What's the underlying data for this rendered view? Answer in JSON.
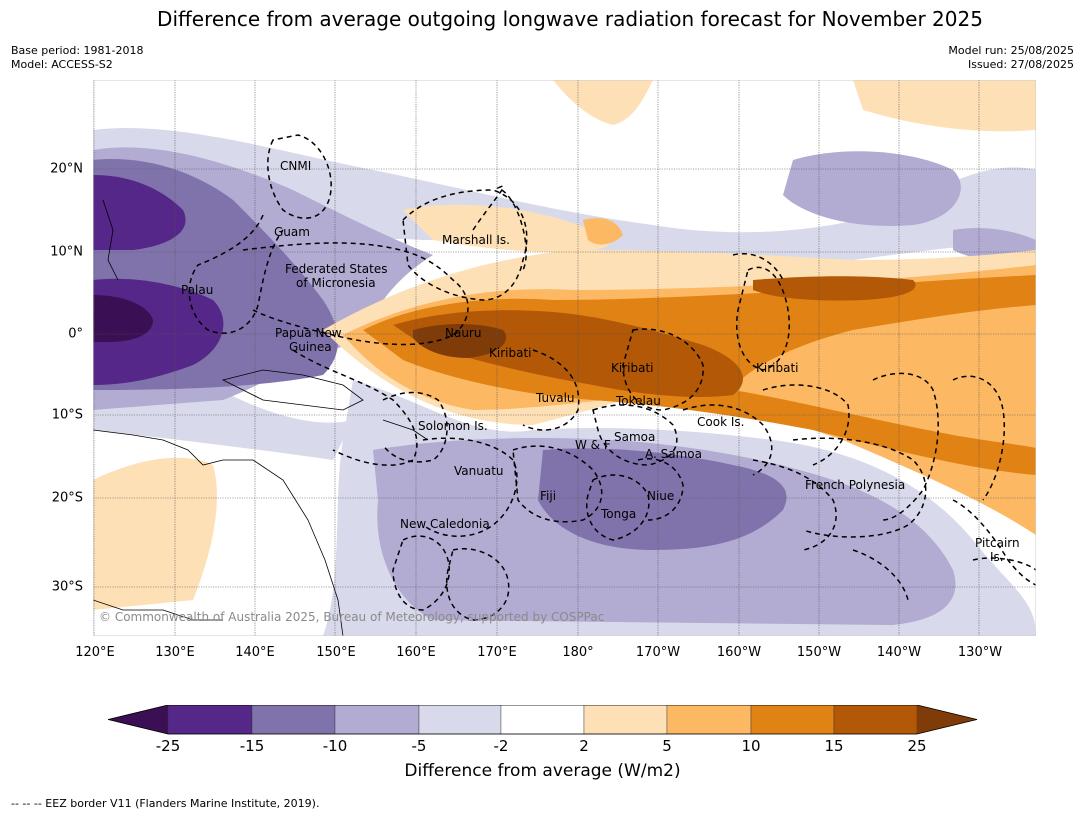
{
  "title": "Difference from average outgoing longwave radiation forecast for November 2025",
  "meta": {
    "base_period": "Base period: 1981-2018",
    "model": "Model: ACCESS-S2",
    "model_run": "Model run: 25/08/2025",
    "issued": "Issued: 27/08/2025"
  },
  "map": {
    "lat_ticks": [
      "20°N",
      "10°N",
      "0°",
      "10°S",
      "20°S",
      "30°S"
    ],
    "lon_ticks": [
      "120°E",
      "130°E",
      "140°E",
      "150°E",
      "160°E",
      "170°E",
      "180°",
      "170°W",
      "160°W",
      "150°W",
      "140°W",
      "130°W"
    ],
    "region_labels": [
      "CNMI",
      "Guam",
      "Marshall Is.",
      "Federated States",
      "of Micronesia",
      "Palau",
      "Papua New",
      "Guinea",
      "Nauru",
      "Kiribati",
      "Kiribati",
      "Kiribati",
      "Tuvalu",
      "Tokelau",
      "Cook Is.",
      "Solomon Is.",
      "W & F",
      "Samoa",
      "A. Samoa",
      "Vanuatu",
      "Fiji",
      "Niue",
      "Tonga",
      "French Polynesia",
      "New Caledonia",
      "Pitcairn",
      "Is."
    ],
    "copyright": "© Commonwealth of Australia 2025, Bureau of Meteorology, supported by COSPPac"
  },
  "colorbar": {
    "ticks": [
      "-25",
      "-15",
      "-10",
      "-5",
      "-2",
      "2",
      "5",
      "10",
      "15",
      "25"
    ],
    "colors": [
      "#3b0f53",
      "#542788",
      "#8073ac",
      "#b2abd2",
      "#d8daeb",
      "#ffffff",
      "#fee0b6",
      "#fdb863",
      "#e08214",
      "#b35806",
      "#7f3b08"
    ],
    "label": "Difference from average (W/m2)"
  },
  "footnote": "--  --  -- EEZ border V11 (Flanders Marine Institute, 2019)."
}
